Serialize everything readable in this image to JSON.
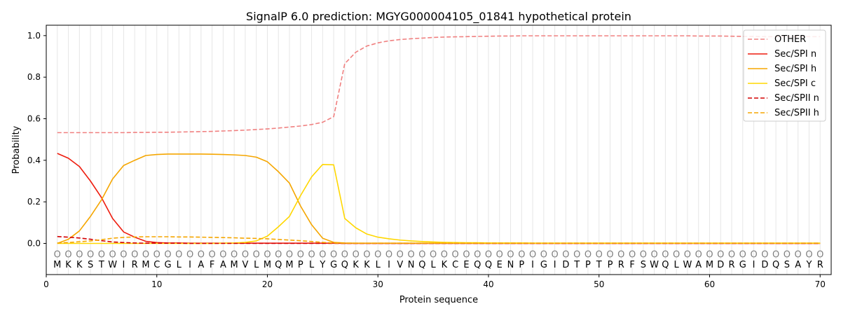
{
  "chart_data": {
    "type": "line",
    "title": "SignalP 6.0 prediction: MGYG000004105_01841 hypothetical protein",
    "xlabel": "Protein sequence",
    "ylabel": "Probability",
    "xlim": [
      0,
      71
    ],
    "ylim": [
      -0.15,
      1.05
    ],
    "x_ticks": [
      0,
      10,
      20,
      30,
      40,
      50,
      60,
      70
    ],
    "y_ticks": [
      0.0,
      0.2,
      0.4,
      0.6,
      0.8,
      1.0
    ],
    "grid": "vertical",
    "legend_position": "top-right",
    "sequence": "MKKSTWIRMCGLIAFAMVLMQMPLYGQKKLIVNQLKCEQQENPIGIDTPTPRFSWQLWAMDRGIDQSAYR",
    "region_marker": "O",
    "series": [
      {
        "name": "OTHER",
        "color": "#f08080",
        "style": "dashed",
        "values": [
          0.533,
          0.533,
          0.533,
          0.533,
          0.533,
          0.533,
          0.533,
          0.534,
          0.534,
          0.535,
          0.535,
          0.536,
          0.537,
          0.538,
          0.539,
          0.541,
          0.543,
          0.545,
          0.548,
          0.551,
          0.555,
          0.56,
          0.565,
          0.572,
          0.583,
          0.61,
          0.865,
          0.92,
          0.95,
          0.965,
          0.975,
          0.981,
          0.985,
          0.988,
          0.991,
          0.993,
          0.994,
          0.995,
          0.996,
          0.997,
          0.998,
          0.998,
          0.999,
          0.999,
          0.999,
          0.999,
          0.999,
          0.999,
          0.999,
          0.999,
          0.999,
          0.999,
          0.999,
          0.999,
          0.999,
          0.999,
          0.999,
          0.999,
          0.998,
          0.998,
          0.998,
          0.997,
          0.996,
          0.996,
          0.995,
          0.995,
          0.995,
          0.995,
          0.995,
          0.995
        ]
      },
      {
        "name": "Sec/SPI n",
        "color": "#ee1c0e",
        "style": "solid",
        "values": [
          0.433,
          0.41,
          0.37,
          0.3,
          0.22,
          0.12,
          0.055,
          0.03,
          0.01,
          0.004,
          0.002,
          0.002,
          0.001,
          0.001,
          0.001,
          0.001,
          0.001,
          0.001,
          0.001,
          0.001,
          0.001,
          0.001,
          0.001,
          0.001,
          0.001,
          0.001,
          0,
          0,
          0,
          0,
          0,
          0,
          0,
          0,
          0,
          0,
          0,
          0,
          0,
          0,
          0,
          0,
          0,
          0,
          0,
          0,
          0,
          0,
          0,
          0,
          0,
          0,
          0,
          0,
          0,
          0,
          0,
          0,
          0,
          0,
          0,
          0,
          0,
          0,
          0,
          0,
          0,
          0,
          0,
          0
        ]
      },
      {
        "name": "Sec/SPI h",
        "color": "#f5a600",
        "style": "solid",
        "values": [
          0,
          0.02,
          0.06,
          0.13,
          0.21,
          0.31,
          0.375,
          0.4,
          0.423,
          0.428,
          0.43,
          0.43,
          0.43,
          0.43,
          0.429,
          0.428,
          0.426,
          0.423,
          0.415,
          0.393,
          0.345,
          0.29,
          0.18,
          0.09,
          0.025,
          0.005,
          0.002,
          0.001,
          0.001,
          0.001,
          0.001,
          0.001,
          0.001,
          0.001,
          0.001,
          0.001,
          0.001,
          0.001,
          0.001,
          0.001,
          0.001,
          0.001,
          0.001,
          0.001,
          0.001,
          0.001,
          0.001,
          0.001,
          0.001,
          0.001,
          0.001,
          0.001,
          0.001,
          0.001,
          0.001,
          0.001,
          0.001,
          0.001,
          0.001,
          0.001,
          0.001,
          0.001,
          0.001,
          0.001,
          0.001,
          0.001,
          0.001,
          0.001,
          0.001,
          0.001
        ]
      },
      {
        "name": "Sec/SPI c",
        "color": "#ffd700",
        "style": "solid",
        "values": [
          0,
          0,
          0,
          0,
          0,
          0,
          0,
          0,
          0,
          0,
          0,
          0,
          0,
          0,
          0,
          0.001,
          0.002,
          0.005,
          0.012,
          0.035,
          0.08,
          0.13,
          0.23,
          0.32,
          0.38,
          0.378,
          0.12,
          0.075,
          0.045,
          0.03,
          0.022,
          0.016,
          0.012,
          0.009,
          0.007,
          0.005,
          0.004,
          0.003,
          0.003,
          0.002,
          0.002,
          0.002,
          0.002,
          0.001,
          0.001,
          0.001,
          0.001,
          0.001,
          0.001,
          0.001,
          0.001,
          0.001,
          0.001,
          0.001,
          0.001,
          0.001,
          0.001,
          0.001,
          0.001,
          0.001,
          0.001,
          0.001,
          0.001,
          0.001,
          0.001,
          0.001,
          0.001,
          0.001,
          0.001,
          0.001
        ]
      },
      {
        "name": "Sec/SPII n",
        "color": "#d40000",
        "style": "dashed",
        "values": [
          0.033,
          0.03,
          0.026,
          0.02,
          0.013,
          0.007,
          0.004,
          0.002,
          0.001,
          0.001,
          0.001,
          0.001,
          0,
          0,
          0,
          0,
          0,
          0,
          0,
          0,
          0,
          0,
          0,
          0,
          0,
          0,
          0,
          0,
          0,
          0,
          0,
          0,
          0,
          0,
          0,
          0,
          0,
          0,
          0,
          0,
          0,
          0,
          0,
          0,
          0,
          0,
          0,
          0,
          0,
          0,
          0,
          0,
          0,
          0,
          0,
          0,
          0,
          0,
          0,
          0,
          0,
          0,
          0,
          0,
          0,
          0,
          0,
          0,
          0,
          0
        ]
      },
      {
        "name": "Sec/SPII h",
        "color": "#f5a600",
        "style": "dashed",
        "values": [
          0.002,
          0.004,
          0.008,
          0.012,
          0.018,
          0.025,
          0.029,
          0.031,
          0.032,
          0.032,
          0.032,
          0.031,
          0.031,
          0.03,
          0.029,
          0.028,
          0.027,
          0.025,
          0.024,
          0.022,
          0.019,
          0.016,
          0.013,
          0.009,
          0.005,
          0.002,
          0.001,
          0.001,
          0.001,
          0.001,
          0.001,
          0.001,
          0.001,
          0.001,
          0.001,
          0.001,
          0.001,
          0.001,
          0.001,
          0.001,
          0.001,
          0.001,
          0.001,
          0.001,
          0.001,
          0.001,
          0.001,
          0.001,
          0.001,
          0.001,
          0.001,
          0.001,
          0.001,
          0.001,
          0.001,
          0.001,
          0.001,
          0.001,
          0.001,
          0.001,
          0.001,
          0.001,
          0.001,
          0.001,
          0.001,
          0.001,
          0.001,
          0.001,
          0.001,
          0.001
        ]
      }
    ]
  }
}
